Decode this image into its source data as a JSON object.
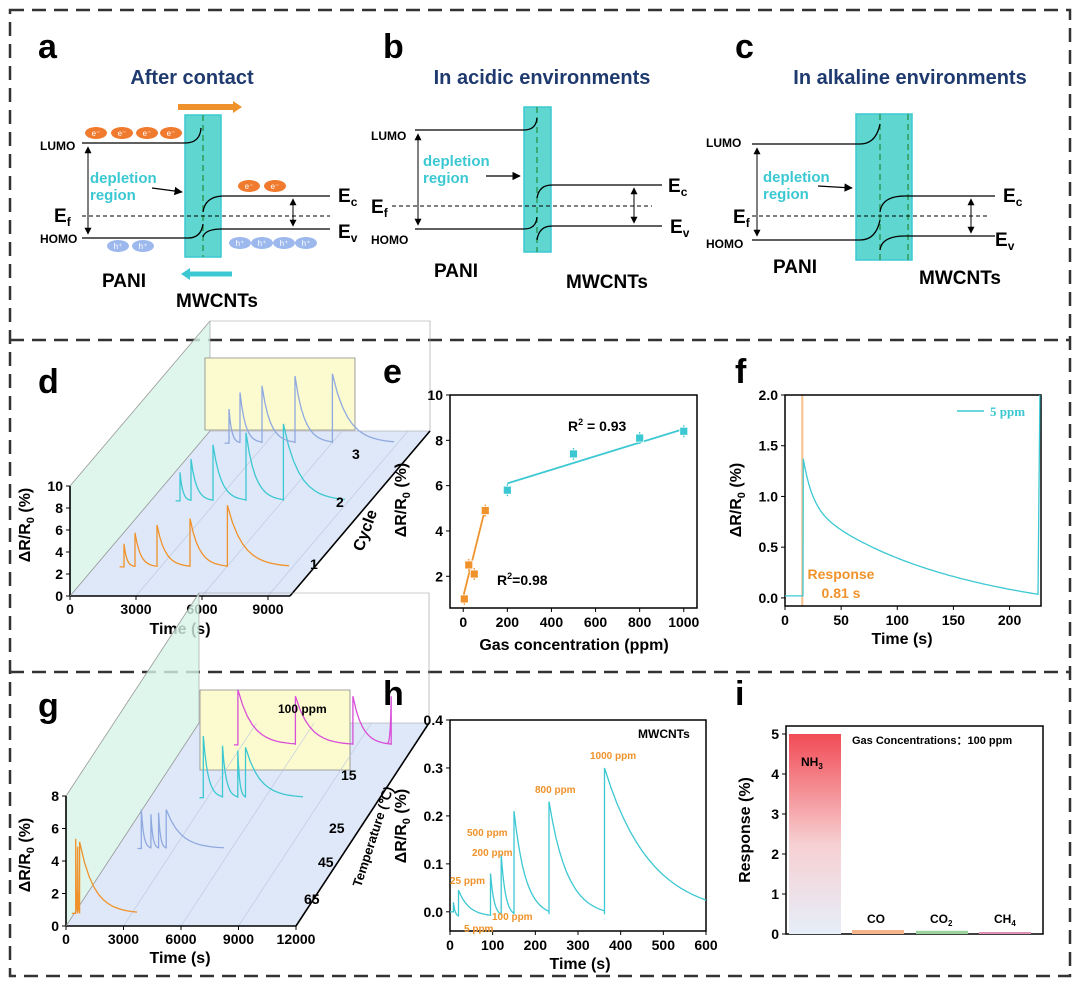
{
  "panel_labels": {
    "a": "a",
    "b": "b",
    "c": "c",
    "d": "d",
    "e": "e",
    "f": "f",
    "g": "g",
    "h": "h",
    "i": "i"
  },
  "band_diagrams": {
    "a": {
      "title": "After contact",
      "lumo": "LUMO",
      "homo": "HOMO",
      "ef": "E",
      "ef_sub": "f",
      "ec": "E",
      "ec_sub": "c",
      "ev": "E",
      "ev_sub": "v",
      "depletion": "depletion",
      "region": "region",
      "left_material": "PANI",
      "right_material": "MWCNTs",
      "electron": "e⁻",
      "hole": "h⁺"
    },
    "b": {
      "title": "In acidic environments",
      "lumo": "LUMO",
      "homo": "HOMO",
      "ef": "E",
      "ef_sub": "f",
      "ec": "E",
      "ec_sub": "c",
      "ev": "E",
      "ev_sub": "v",
      "depletion": "depletion",
      "region": "region",
      "left_material": "PANI",
      "right_material": "MWCNTs"
    },
    "c": {
      "title": "In alkaline environments",
      "lumo": "LUMO",
      "homo": "HOMO",
      "ef": "E",
      "ef_sub": "f",
      "ec": "E",
      "ec_sub": "c",
      "ev": "E",
      "ev_sub": "v",
      "depletion": "depletion",
      "region": "region",
      "left_material": "PANI",
      "right_material": "MWCNTs"
    }
  },
  "colors": {
    "cyan": "#3cc8d2",
    "orange": "#f0922b",
    "blue": "#8fa9e0",
    "magenta": "#d84fd8",
    "navy": "#1f3a6e",
    "yellow": "#fcfbcf"
  },
  "chart_data": [
    {
      "panel": "d",
      "type": "line",
      "title": "",
      "xlabel": "Time (s)",
      "ylabel_main": "ΔR/R",
      "ylabel_sub": "0",
      "ylabel_unit": " (%)",
      "zlabel": "Cycle",
      "xticks": [
        0,
        3000,
        6000,
        9000
      ],
      "yticks": [
        0,
        2,
        4,
        6,
        8,
        10
      ],
      "ylim": [
        0,
        10
      ],
      "xlim": [
        0,
        10000
      ],
      "series": [
        {
          "name": "1",
          "pulse_times": [
            1500,
            2000,
            3000,
            4500,
            6200
          ],
          "peaks": [
            2.5,
            3.5,
            4.2,
            4.8,
            6.0
          ]
        },
        {
          "name": "2",
          "pulse_times": [
            1500,
            2000,
            3000,
            4500,
            6200
          ],
          "peaks": [
            3.0,
            4.2,
            5.5,
            6.6,
            7.4
          ]
        },
        {
          "name": "3",
          "pulse_times": [
            1500,
            2000,
            3000,
            4500,
            6200
          ],
          "peaks": [
            3.5,
            5.0,
            5.6,
            6.5,
            6.7
          ]
        }
      ]
    },
    {
      "panel": "e",
      "type": "scatter",
      "xlabel": "Gas concentration (ppm)",
      "ylabel_main": "ΔR/R",
      "ylabel_sub": "0",
      "ylabel_unit": " (%)",
      "xlim": [
        -60,
        1060
      ],
      "ylim": [
        0.6,
        10
      ],
      "xticks": [
        0,
        200,
        400,
        600,
        800,
        1000
      ],
      "yticks": [
        2,
        4,
        6,
        8,
        10
      ],
      "series": [
        {
          "name": "low",
          "x": [
            5,
            25,
            50,
            100
          ],
          "y": [
            1.0,
            2.5,
            2.1,
            4.9
          ]
        },
        {
          "name": "high",
          "x": [
            200,
            500,
            800,
            1000
          ],
          "y": [
            5.8,
            7.4,
            8.1,
            8.4
          ]
        }
      ],
      "fits": [
        {
          "x": [
            0,
            100
          ],
          "y": [
            1.1,
            5.0
          ],
          "label": "R",
          "sup": "2",
          "rest": "=0.98"
        },
        {
          "x": [
            200,
            1000
          ],
          "y": [
            6.1,
            8.5
          ],
          "label": "R",
          "sup": "2",
          "rest": " = 0.93"
        }
      ]
    },
    {
      "panel": "f",
      "type": "line",
      "xlabel": "Time (s)",
      "ylabel_main": "ΔR/R",
      "ylabel_sub": "0",
      "ylabel_unit": " (%)",
      "xlim": [
        0,
        228
      ],
      "ylim": [
        -0.08,
        2.0
      ],
      "xticks": [
        0,
        50,
        100,
        150,
        200
      ],
      "yticks": [
        0.0,
        0.5,
        1.0,
        1.5,
        2.0
      ],
      "legend": "5 ppm",
      "response_text": "Response",
      "response_time": "0.81 s",
      "on_time": 16.3,
      "peak": 1.37,
      "baseline": 0.0
    },
    {
      "panel": "g",
      "type": "line",
      "xlabel": "Time (s)",
      "ylabel_main": "ΔR/R",
      "ylabel_sub": "0",
      "ylabel_unit": " (%)",
      "zlabel": "Temperature (℃)",
      "xticks": [
        0,
        3000,
        6000,
        9000,
        12000
      ],
      "yticks": [
        0,
        2,
        4,
        6,
        8
      ],
      "ztick_labels": [
        "15",
        "25",
        "45",
        "65"
      ],
      "ylim": [
        0,
        8
      ],
      "xlim": [
        0,
        12000
      ],
      "note": "100 ppm",
      "series": [
        {
          "name": "15",
          "pulse_times": [
            3000,
            6000,
            9000,
            11000
          ],
          "peaks": [
            3.8,
            3.4,
            3.4,
            3.4
          ]
        },
        {
          "name": "25",
          "pulse_times": [
            3000,
            4000,
            4800,
            5200
          ],
          "peaks": [
            4.2,
            3.6,
            3.3,
            3.5
          ]
        },
        {
          "name": "45",
          "pulse_times": [
            1500,
            2000,
            2400,
            2800
          ],
          "peaks": [
            2.8,
            2.5,
            2.6,
            2.8
          ]
        },
        {
          "name": "65",
          "pulse_times": [
            300,
            400,
            500
          ],
          "peaks": [
            5.0,
            4.5,
            4.8
          ]
        }
      ]
    },
    {
      "panel": "h",
      "type": "line",
      "xlabel": "Time (s)",
      "ylabel_main": "ΔR/R",
      "ylabel_sub": "0",
      "ylabel_unit": " (%)",
      "xlim": [
        0,
        600
      ],
      "ylim": [
        -0.04,
        0.4
      ],
      "xticks": [
        0,
        100,
        200,
        300,
        400,
        500,
        600
      ],
      "yticks": [
        0.0,
        0.1,
        0.2,
        0.3,
        0.4
      ],
      "legend": "MWCNTs",
      "pulses": [
        {
          "t": 8,
          "peak": 0.02,
          "label": "5 ppm"
        },
        {
          "t": 20,
          "peak": 0.045,
          "label": "25 ppm"
        },
        {
          "t": 95,
          "peak": 0.08,
          "label": "100 ppm"
        },
        {
          "t": 120,
          "peak": 0.12,
          "label": "200 ppm"
        },
        {
          "t": 150,
          "peak": 0.21,
          "label": "500 ppm"
        },
        {
          "t": 232,
          "peak": 0.23,
          "label": "800 ppm"
        },
        {
          "t": 362,
          "peak": 0.3,
          "label": "1000 ppm"
        }
      ]
    },
    {
      "panel": "i",
      "type": "bar",
      "xlabel": "",
      "ylabel": "Response (%)",
      "title": "Gas Concentrations：100 ppm",
      "ylim": [
        0,
        5.2
      ],
      "yticks": [
        0,
        1,
        2,
        3,
        4,
        5
      ],
      "categories": [
        {
          "main": "NH",
          "sub": "3"
        },
        {
          "main": "CO",
          "sub": ""
        },
        {
          "main": "CO",
          "sub": "2"
        },
        {
          "main": "CH",
          "sub": "4"
        }
      ],
      "values": [
        5.0,
        0.1,
        0.08,
        0.05
      ]
    }
  ]
}
